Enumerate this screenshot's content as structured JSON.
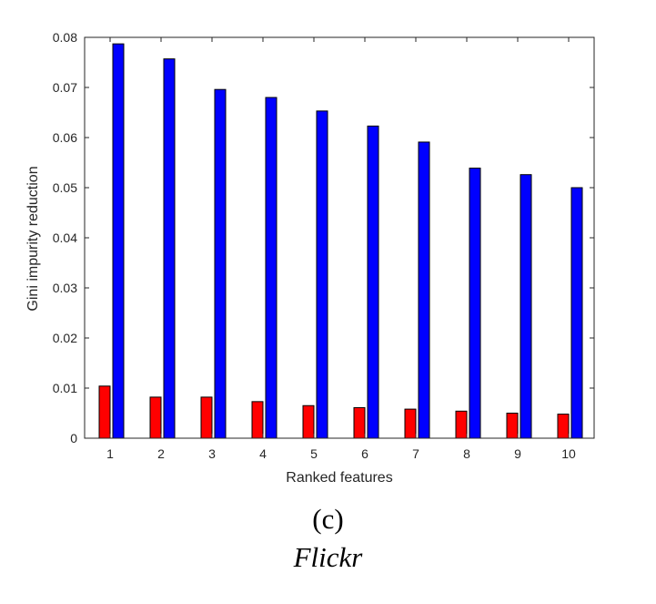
{
  "chart_data": {
    "type": "bar",
    "categories": [
      "1",
      "2",
      "3",
      "4",
      "5",
      "6",
      "7",
      "8",
      "9",
      "10"
    ],
    "series": [
      {
        "values": [
          0.0104,
          0.0082,
          0.0082,
          0.0073,
          0.0065,
          0.0061,
          0.0058,
          0.0054,
          0.005,
          0.0048
        ],
        "color": "#ff0000"
      },
      {
        "values": [
          0.0787,
          0.0757,
          0.0696,
          0.068,
          0.0653,
          0.0623,
          0.0591,
          0.0539,
          0.0526,
          0.05
        ],
        "color": "#0000ff"
      }
    ],
    "xlabel": "Ranked features",
    "ylabel": "Gini impurity reduction",
    "ylim": [
      0,
      0.08
    ],
    "yticks": [
      "0",
      "0.01",
      "0.02",
      "0.03",
      "0.04",
      "0.05",
      "0.06",
      "0.07",
      "0.08"
    ],
    "grid": false,
    "legend": "none"
  },
  "caption": {
    "label": "(c)",
    "dataset": "Flickr"
  }
}
